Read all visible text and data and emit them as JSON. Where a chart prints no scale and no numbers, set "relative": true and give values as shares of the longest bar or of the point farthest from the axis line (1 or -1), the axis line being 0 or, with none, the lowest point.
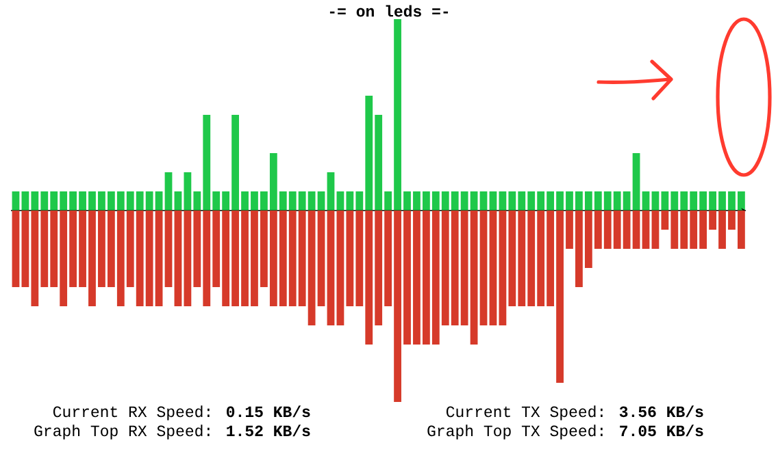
{
  "chart_data": [
    {
      "type": "bar",
      "title": "-= on leds =-",
      "relative": true,
      "categories": [
        null,
        null,
        null,
        null,
        null,
        null,
        null,
        null,
        null,
        null,
        null,
        null,
        null,
        null,
        null,
        null,
        null,
        null,
        null,
        null,
        null,
        null,
        null,
        null,
        null,
        null,
        null,
        null,
        null,
        null,
        null,
        null,
        null,
        null,
        null,
        null,
        null,
        null,
        null,
        null,
        null,
        null,
        null,
        null,
        null,
        null,
        null,
        null,
        null,
        null,
        null,
        null,
        null,
        null,
        null,
        null,
        null,
        null,
        null,
        null,
        null,
        null,
        null,
        null,
        null,
        null,
        null,
        null,
        null,
        null,
        null,
        null,
        null,
        null,
        null,
        null,
        null
      ],
      "series": [
        {
          "color": "#1fc84a",
          "values": [
            0.1,
            0.1,
            0.1,
            0.1,
            0.1,
            0.1,
            0.1,
            0.1,
            0.1,
            0.1,
            0.1,
            0.1,
            0.1,
            0.1,
            0.1,
            0.1,
            0.2,
            0.1,
            0.2,
            0.1,
            0.5,
            0.1,
            0.1,
            0.5,
            0.1,
            0.1,
            0.1,
            0.3,
            0.1,
            0.1,
            0.1,
            0.1,
            0.1,
            0.2,
            0.1,
            0.1,
            0.1,
            0.6,
            0.5,
            0.1,
            1,
            0.1,
            0.1,
            0.1,
            0.1,
            0.1,
            0.1,
            0.1,
            0.1,
            0.1,
            0.1,
            0.1,
            0.1,
            0.1,
            0.1,
            0.1,
            0.1,
            0.1,
            0.1,
            0.1,
            0.1,
            0.1,
            0.1,
            0.1,
            0.1,
            0.3,
            0.1,
            0.1,
            0.1,
            0.1,
            0.1,
            0.1,
            0.1,
            0.1,
            0.1,
            0.1,
            0.1
          ]
        }
      ]
    },
    {
      "type": "bar",
      "relative": true,
      "categories": [
        null,
        null,
        null,
        null,
        null,
        null,
        null,
        null,
        null,
        null,
        null,
        null,
        null,
        null,
        null,
        null,
        null,
        null,
        null,
        null,
        null,
        null,
        null,
        null,
        null,
        null,
        null,
        null,
        null,
        null,
        null,
        null,
        null,
        null,
        null,
        null,
        null,
        null,
        null,
        null,
        null,
        null,
        null,
        null,
        null,
        null,
        null,
        null,
        null,
        null,
        null,
        null,
        null,
        null,
        null,
        null,
        null,
        null,
        null,
        null,
        null,
        null,
        null,
        null,
        null,
        null,
        null,
        null,
        null,
        null,
        null,
        null,
        null,
        null,
        null,
        null,
        null
      ],
      "series": [
        {
          "color": "#d63a2a",
          "values": [
            -0.4,
            -0.4,
            -0.5,
            -0.4,
            -0.4,
            -0.5,
            -0.4,
            -0.4,
            -0.5,
            -0.4,
            -0.4,
            -0.5,
            -0.4,
            -0.5,
            -0.5,
            -0.5,
            -0.4,
            -0.5,
            -0.5,
            -0.4,
            -0.5,
            -0.4,
            -0.5,
            -0.5,
            -0.5,
            -0.5,
            -0.4,
            -0.5,
            -0.5,
            -0.5,
            -0.5,
            -0.6,
            -0.5,
            -0.6,
            -0.6,
            -0.5,
            -0.5,
            -0.7,
            -0.6,
            -0.5,
            -1,
            -0.7,
            -0.7,
            -0.7,
            -0.7,
            -0.6,
            -0.6,
            -0.6,
            -0.7,
            -0.6,
            -0.6,
            -0.6,
            -0.5,
            -0.5,
            -0.5,
            -0.5,
            -0.5,
            -0.9,
            -0.2,
            -0.4,
            -0.3,
            -0.2,
            -0.2,
            -0.2,
            -0.2,
            -0.2,
            -0.2,
            -0.2,
            -0.1,
            -0.2,
            -0.2,
            -0.2,
            -0.2,
            -0.1,
            -0.2,
            -0.1,
            -0.2
          ]
        }
      ],
      "annotations": [
        "Current RX Speed: **0.15 KB/s**",
        "Current TX Speed: **3.56 KB/s**",
        "Graph Top RX Speed: **1.52 KB/s**",
        "Graph Top TX Speed: **7.05 KB/s**"
      ]
    }
  ]
}
